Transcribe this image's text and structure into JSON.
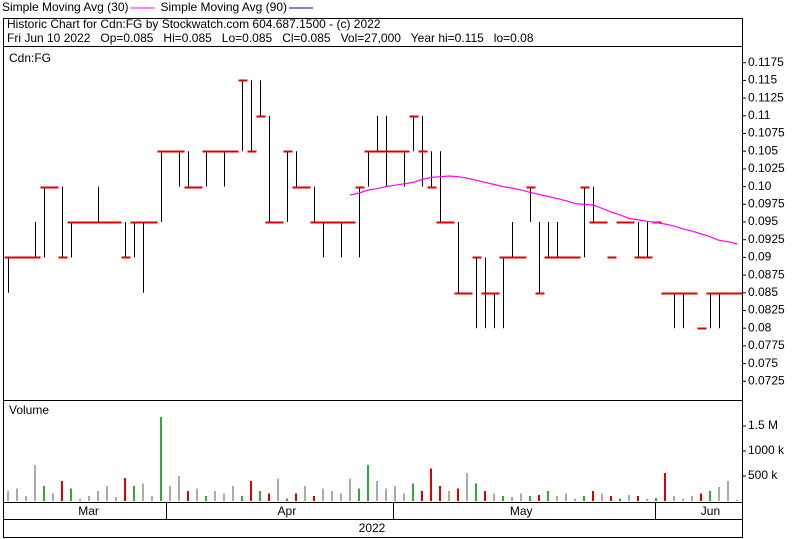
{
  "chart_data": {
    "type": "ohlc",
    "title": "Historic Chart for Cdn:FG by Stockwatch.com 604.687.1500 - (c) 2022",
    "subtitle": "Fri Jun 10 2022   Op=0.085   Hi=0.085   Lo=0.085   Cl=0.085   Vol=27,000   Year hi=0.115   lo=0.08",
    "panel_label": "Cdn:FG",
    "volume_label": "Volume",
    "year_label": "2022",
    "categories": [
      null,
      null,
      null,
      null,
      null,
      null,
      null,
      null,
      null,
      "Mar",
      null,
      null,
      null,
      null,
      null,
      null,
      null,
      null,
      null,
      null,
      null,
      null,
      null,
      null,
      null,
      null,
      null,
      null,
      null,
      null,
      null,
      "Apr",
      null,
      null,
      null,
      null,
      null,
      null,
      null,
      null,
      null,
      null,
      null,
      null,
      null,
      null,
      null,
      null,
      null,
      null,
      null,
      null,
      null,
      null,
      null,
      null,
      null,
      "May",
      null,
      null,
      null,
      null,
      null,
      null,
      null,
      null,
      null,
      null,
      null,
      null,
      null,
      null,
      null,
      null,
      null,
      null,
      null,
      null,
      "Jun",
      null,
      null,
      null
    ],
    "bars": {
      "color": "#000000",
      "close_color": "#e00000",
      "high": [
        0.09,
        0.09,
        0.09,
        0.095,
        0.1,
        0.1,
        0.1,
        0.095,
        0.095,
        0.095,
        0.1,
        0.095,
        0.095,
        0.095,
        0.095,
        0.095,
        0.095,
        0.105,
        0.105,
        0.105,
        0.105,
        0.1,
        0.105,
        0.105,
        0.105,
        0.105,
        0.115,
        0.115,
        0.115,
        0.11,
        0.095,
        0.105,
        0.105,
        0.1,
        0.1,
        0.095,
        0.095,
        0.095,
        0.095,
        0.1,
        0.105,
        0.11,
        0.11,
        0.105,
        0.105,
        0.11,
        0.11,
        0.105,
        0.105,
        0.095,
        0.095,
        0.085,
        0.09,
        0.09,
        0.085,
        0.09,
        0.095,
        0.09,
        0.1,
        0.095,
        0.095,
        0.095,
        0.09,
        0.09,
        0.1,
        0.1,
        0.095,
        0.09,
        0.095,
        0.095,
        0.095,
        0.095,
        0.095,
        0.085,
        0.085,
        0.085,
        0.085,
        0.08,
        0.085,
        0.085,
        0.085,
        0.085
      ],
      "low": [
        0.085,
        0.09,
        0.09,
        0.09,
        0.09,
        0.1,
        0.09,
        0.09,
        0.095,
        0.095,
        0.095,
        0.095,
        0.095,
        0.09,
        0.09,
        0.085,
        0.095,
        0.095,
        0.105,
        0.1,
        0.1,
        0.1,
        0.1,
        0.105,
        0.1,
        0.105,
        0.105,
        0.105,
        0.11,
        0.095,
        0.095,
        0.095,
        0.1,
        0.1,
        0.095,
        0.09,
        0.095,
        0.09,
        0.095,
        0.09,
        0.1,
        0.105,
        0.1,
        0.105,
        0.1,
        0.105,
        0.1,
        0.1,
        0.095,
        0.095,
        0.085,
        0.085,
        0.08,
        0.08,
        0.08,
        0.08,
        0.09,
        0.09,
        0.095,
        0.085,
        0.09,
        0.09,
        0.09,
        0.09,
        0.09,
        0.095,
        0.095,
        0.09,
        0.095,
        0.095,
        0.09,
        0.09,
        0.095,
        0.085,
        0.08,
        0.08,
        0.085,
        0.08,
        0.08,
        0.08,
        0.085,
        0.085
      ],
      "close": [
        0.09,
        0.09,
        0.09,
        0.09,
        0.1,
        0.1,
        0.09,
        0.095,
        0.095,
        0.095,
        0.095,
        0.095,
        0.095,
        0.09,
        0.095,
        0.095,
        0.095,
        0.105,
        0.105,
        0.105,
        0.1,
        0.1,
        0.105,
        0.105,
        0.105,
        0.105,
        0.115,
        0.105,
        0.11,
        0.095,
        0.095,
        0.105,
        0.1,
        0.1,
        0.095,
        0.095,
        0.095,
        0.095,
        0.095,
        0.1,
        0.105,
        0.105,
        0.105,
        0.105,
        0.105,
        0.11,
        0.105,
        0.1,
        0.095,
        0.095,
        0.085,
        0.085,
        0.09,
        0.085,
        0.085,
        0.09,
        0.09,
        0.09,
        0.1,
        0.085,
        0.09,
        0.09,
        0.09,
        0.09,
        0.1,
        0.095,
        0.095,
        0.09,
        0.095,
        0.095,
        0.09,
        0.09,
        0.095,
        0.085,
        0.085,
        0.085,
        0.085,
        0.08,
        0.085,
        0.085,
        0.085,
        0.085
      ]
    },
    "series": [
      {
        "name": "Simple Moving Avg (30)",
        "color": "#ff00ff",
        "values": [
          null,
          null,
          null,
          null,
          null,
          null,
          null,
          null,
          null,
          null,
          null,
          null,
          null,
          null,
          null,
          null,
          null,
          null,
          null,
          null,
          null,
          null,
          null,
          null,
          null,
          null,
          null,
          null,
          null,
          null,
          null,
          null,
          null,
          null,
          null,
          null,
          null,
          null,
          0.0988,
          0.0991,
          0.0995,
          0.0997,
          0.1,
          0.1002,
          0.1004,
          0.1006,
          0.101,
          0.1013,
          0.1014,
          0.1015,
          0.1014,
          0.1012,
          0.1009,
          0.1006,
          0.1003,
          0.1,
          0.0998,
          0.0995,
          0.0992,
          0.0989,
          0.0986,
          0.0983,
          0.098,
          0.0976,
          0.0975,
          0.0974,
          0.0969,
          0.0964,
          0.096,
          0.0955,
          0.0953,
          0.0951,
          0.0949,
          0.0947,
          0.0944,
          0.094,
          0.0937,
          0.0933,
          0.0929,
          0.0924,
          0.0922,
          0.0919
        ]
      },
      {
        "name": "Simple Moving Avg (90)",
        "color": "#000099"
      }
    ],
    "ylim": [
      0.07,
      0.12
    ],
    "yticks": [
      0.0725,
      0.075,
      0.0775,
      0.08,
      0.0825,
      0.085,
      0.0875,
      0.09,
      0.0925,
      0.095,
      0.0975,
      {
        "value": 0.1,
        "label": "0.10"
      },
      0.1025,
      0.105,
      0.1075,
      0.11,
      0.1125,
      0.115,
      0.1175
    ],
    "volume": {
      "values": [
        200000,
        250000,
        100000,
        720000,
        300000,
        150000,
        400000,
        250000,
        50000,
        100000,
        200000,
        300000,
        80000,
        460000,
        300000,
        350000,
        100000,
        1680000,
        300000,
        500000,
        200000,
        250000,
        100000,
        200000,
        150000,
        300000,
        100000,
        400000,
        200000,
        150000,
        450000,
        50000,
        150000,
        300000,
        100000,
        250000,
        200000,
        150000,
        450000,
        250000,
        720000,
        400000,
        250000,
        300000,
        150000,
        350000,
        200000,
        650000,
        300000,
        200000,
        250000,
        560000,
        350000,
        200000,
        150000,
        100000,
        80000,
        150000,
        100000,
        120000,
        200000,
        100000,
        150000,
        50000,
        100000,
        200000,
        150000,
        100000,
        50000,
        120000,
        100000,
        50000,
        60000,
        560000,
        100000,
        50000,
        100000,
        150000,
        200000,
        280000,
        400000,
        27000
      ],
      "up_color": "#33aa33",
      "down_color": "#dd0000",
      "flat_color": "#aaaaaa",
      "ylim": [
        0,
        2000000
      ],
      "yticks": [
        {
          "value": 500000,
          "label": "500 k"
        },
        {
          "value": 1000000,
          "label": "1000 k"
        },
        {
          "value": 1500000,
          "label": "1.5 M"
        }
      ]
    }
  }
}
